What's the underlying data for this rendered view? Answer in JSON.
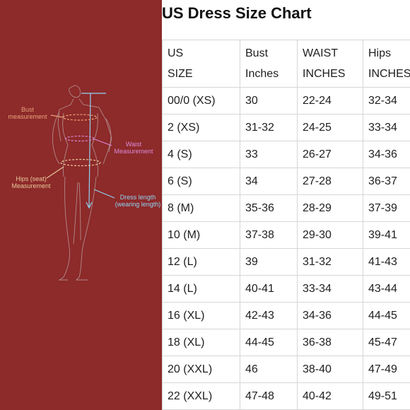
{
  "title": "US Dress Size Chart",
  "figure": {
    "labels": {
      "bust": [
        "Bust",
        "measurement"
      ],
      "waist": [
        "Waist",
        "Measurement"
      ],
      "hips": [
        "Hips (seat)",
        "Measurement"
      ],
      "dress": [
        "Dress length",
        "(wearing length)"
      ]
    },
    "colors": {
      "background": "#8d2a2a",
      "bust": "#e8a27a",
      "waist": "#d98bd9",
      "hips": "#e8c89a",
      "dress_length": "#8fd3f0"
    }
  },
  "table": {
    "headers": [
      [
        "US",
        "SIZE"
      ],
      [
        "Bust",
        "Inches"
      ],
      [
        "WAIST",
        "INCHES"
      ],
      [
        "Hips",
        "INCHES"
      ]
    ],
    "rows": [
      [
        "00/0 (XS)",
        "30",
        "22-24",
        "32-34"
      ],
      [
        "2 (XS)",
        "31-32",
        "24-25",
        "33-34"
      ],
      [
        "4 (S)",
        "33",
        "26-27",
        "34-36"
      ],
      [
        "6 (S)",
        "34",
        "27-28",
        "36-37"
      ],
      [
        "8 (M)",
        "35-36",
        "28-29",
        "37-39"
      ],
      [
        "10 (M)",
        "37-38",
        "29-30",
        "39-41"
      ],
      [
        "12 (L)",
        "39",
        "31-32",
        "41-43"
      ],
      [
        "14 (L)",
        "40-41",
        "33-34",
        "43-44"
      ],
      [
        "16 (XL)",
        "42-43",
        "34-36",
        "44-45"
      ],
      [
        "18 (XL)",
        "44-45",
        "36-38",
        "45-47"
      ],
      [
        "20 (XXL)",
        "46",
        "38-40",
        "47-49"
      ],
      [
        "22 (XXL)",
        "47-48",
        "40-42",
        "49-51"
      ]
    ]
  }
}
